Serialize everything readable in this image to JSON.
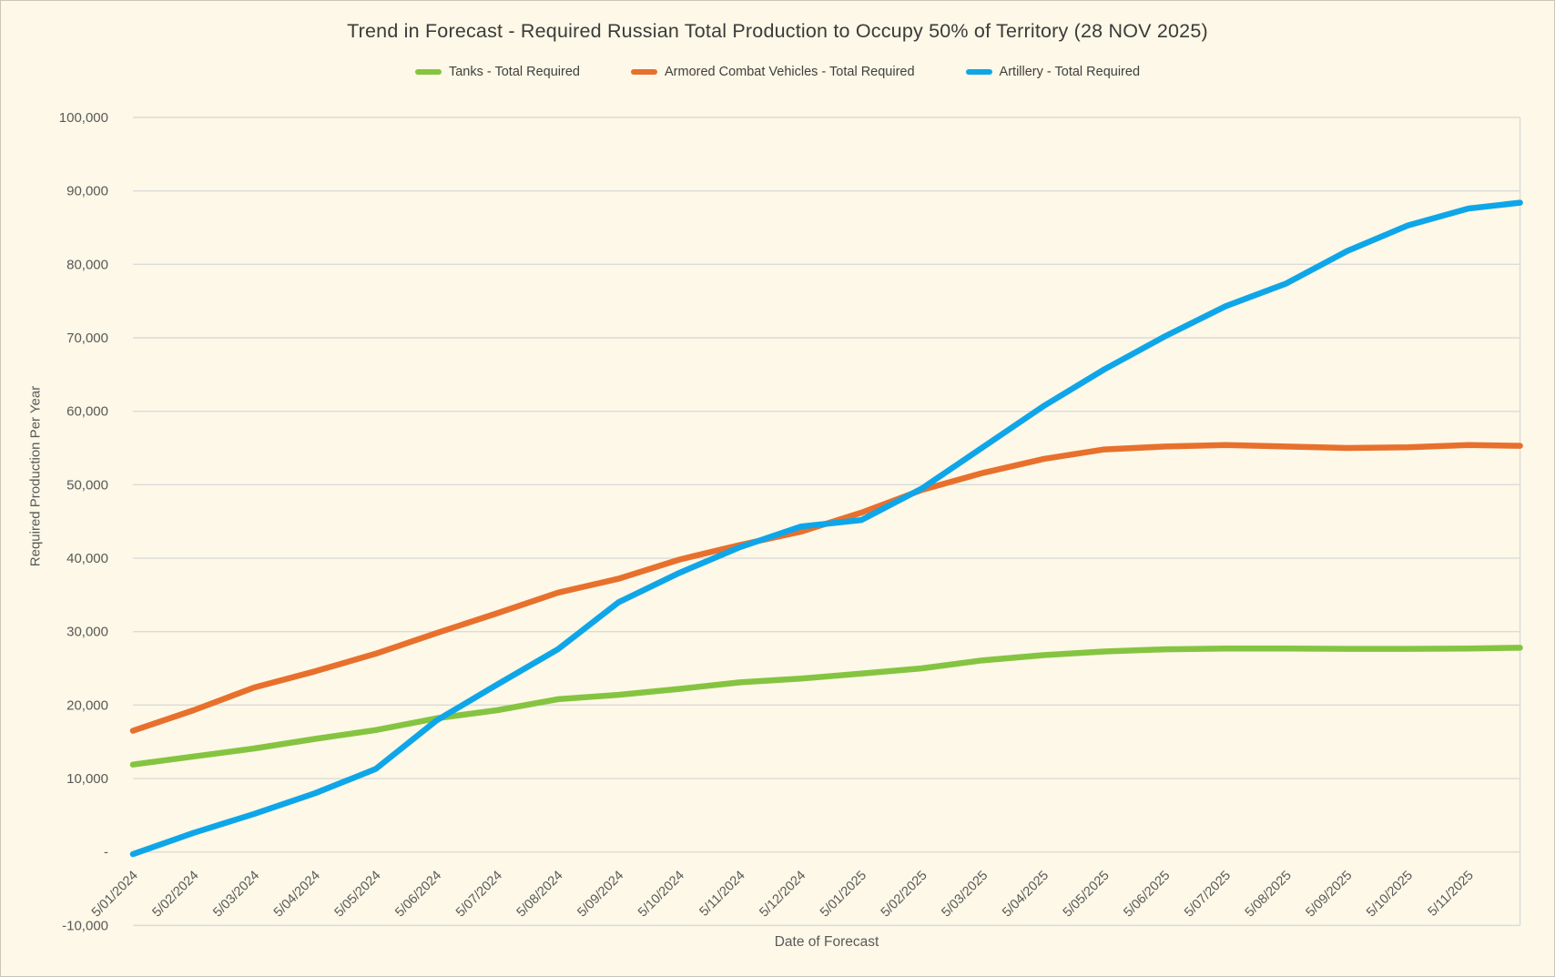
{
  "chart_data": {
    "type": "line",
    "title": "Trend in Forecast - Required Russian Total Production to Occupy 50% of Territory (28 NOV 2025)",
    "xlabel": "Date of Forecast",
    "ylabel": "Required Production Per Year",
    "legend_position": "top",
    "grid": "horizontal",
    "ylim": [
      -10000,
      100000
    ],
    "colors": {
      "background": "#FDF8E7",
      "gridline": "#DBDBDB",
      "tick_text": "#595959",
      "title_text": "#3B3B3B"
    },
    "y_ticks": {
      "values": [
        -10000,
        0,
        10000,
        20000,
        30000,
        40000,
        50000,
        60000,
        70000,
        80000,
        90000,
        100000
      ],
      "labels": [
        "-10,000",
        "-",
        "10,000",
        "20,000",
        "30,000",
        "40,000",
        "50,000",
        "60,000",
        "70,000",
        "80,000",
        "90,000",
        "100,000"
      ]
    },
    "x_tick_labels": [
      "5/01/2024",
      "5/02/2024",
      "5/03/2024",
      "5/04/2024",
      "5/05/2024",
      "5/06/2024",
      "5/07/2024",
      "5/08/2024",
      "5/09/2024",
      "5/10/2024",
      "5/11/2024",
      "5/12/2024",
      "5/01/2025",
      "5/02/2025",
      "5/03/2025",
      "5/04/2025",
      "5/05/2025",
      "5/06/2025",
      "5/07/2025",
      "5/08/2025",
      "5/09/2025",
      "5/10/2025",
      "5/11/2025"
    ],
    "x_positions": [
      0,
      1,
      2,
      3,
      4,
      5,
      6,
      7,
      8,
      9,
      10,
      11,
      12,
      13,
      14,
      15,
      16,
      17,
      18,
      19,
      20,
      21,
      22,
      22.85
    ],
    "series": [
      {
        "name": "Tanks - Total Required",
        "color": "#85C441",
        "values": [
          11900,
          13000,
          14100,
          15400,
          16600,
          18200,
          19300,
          20800,
          21400,
          22200,
          23100,
          23600,
          24300,
          25000,
          26100,
          26800,
          27300,
          27600,
          27700,
          27700,
          27650,
          27650,
          27700,
          27800
        ]
      },
      {
        "name": "Armored Combat Vehicles - Total Required",
        "color": "#E8702D",
        "values": [
          16500,
          19300,
          22400,
          24600,
          27000,
          29800,
          32500,
          35300,
          37200,
          39800,
          41800,
          43600,
          46200,
          49300,
          51600,
          53500,
          54800,
          55200,
          55400,
          55200,
          55000,
          55100,
          55400,
          55300
        ]
      },
      {
        "name": "Artillery - Total Required",
        "color": "#0EA6E9",
        "values": [
          -300,
          2600,
          5200,
          8000,
          11300,
          17900,
          22800,
          27600,
          34000,
          38000,
          41500,
          44300,
          45200,
          49500,
          55100,
          60700,
          65700,
          70200,
          74300,
          77400,
          81800,
          85300,
          87600,
          88400
        ]
      }
    ]
  }
}
